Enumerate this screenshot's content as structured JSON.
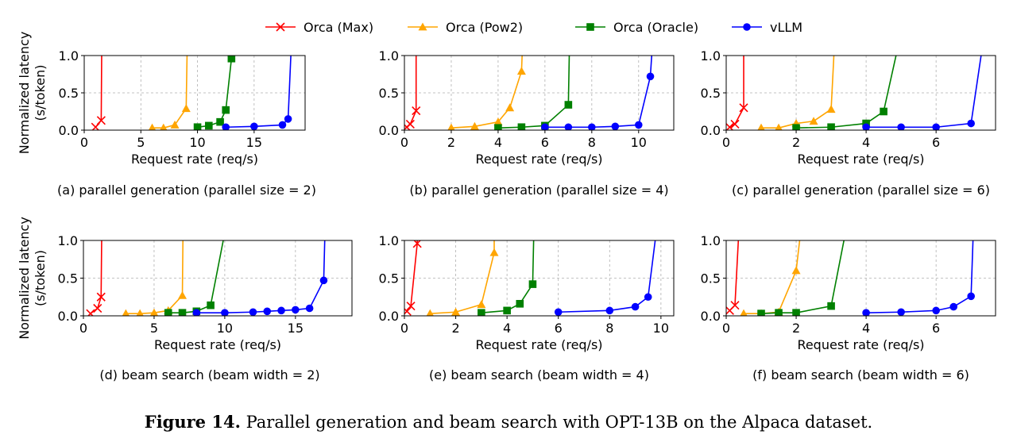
{
  "caption": {
    "label": "Figure 14.",
    "text": "Parallel generation and beam search with OPT-13B on the Alpaca dataset."
  },
  "legend": [
    {
      "name": "Orca (Max)",
      "color": "#ff0000",
      "marker": "x"
    },
    {
      "name": "Orca (Pow2)",
      "color": "#ffa500",
      "marker": "triangle"
    },
    {
      "name": "Orca (Oracle)",
      "color": "#008000",
      "marker": "square"
    },
    {
      "name": "vLLM",
      "color": "#0000ff",
      "marker": "circle"
    }
  ],
  "chart_data": [
    {
      "type": "line",
      "title": "(a) parallel generation (parallel size = 2)",
      "xlabel": "Request rate (req/s)",
      "ylabel": "Normalized latency (s/token)",
      "xlim": [
        0,
        19.5
      ],
      "ylim": [
        0,
        1.0
      ],
      "xticks": [
        0,
        5,
        10,
        15
      ],
      "yticks": [
        0.0,
        0.5,
        1.0
      ],
      "grid": true,
      "series": [
        {
          "name": "Orca (Max)",
          "x": [
            1.0,
            1.5,
            1.55
          ],
          "y": [
            0.04,
            0.13,
            1.2
          ]
        },
        {
          "name": "Orca (Pow2)",
          "x": [
            6,
            7,
            8,
            9,
            9.1
          ],
          "y": [
            0.03,
            0.03,
            0.07,
            0.29,
            1.2
          ]
        },
        {
          "name": "Orca (Oracle)",
          "x": [
            10,
            11,
            12,
            12.5,
            13
          ],
          "y": [
            0.04,
            0.06,
            0.11,
            0.27,
            0.96
          ]
        },
        {
          "name": "vLLM",
          "x": [
            12.5,
            15,
            17.5,
            18,
            18.3
          ],
          "y": [
            0.04,
            0.05,
            0.07,
            0.15,
            1.2
          ]
        }
      ]
    },
    {
      "type": "line",
      "title": "(b) parallel generation (parallel size = 4)",
      "xlabel": "Request rate (req/s)",
      "ylabel": "",
      "xlim": [
        0,
        11.5
      ],
      "ylim": [
        0,
        1.0
      ],
      "xticks": [
        0,
        2,
        4,
        6,
        8,
        10
      ],
      "yticks": [
        0.0,
        0.5,
        1.0
      ],
      "grid": true,
      "series": [
        {
          "name": "Orca (Max)",
          "x": [
            0.1,
            0.25,
            0.5,
            0.5
          ],
          "y": [
            0.04,
            0.08,
            0.26,
            1.2
          ]
        },
        {
          "name": "Orca (Pow2)",
          "x": [
            2,
            3,
            4,
            4.5,
            5,
            5.05
          ],
          "y": [
            0.03,
            0.05,
            0.11,
            0.3,
            0.79,
            1.2
          ]
        },
        {
          "name": "Orca (Oracle)",
          "x": [
            4,
            5,
            6,
            7,
            7.05
          ],
          "y": [
            0.03,
            0.04,
            0.06,
            0.34,
            1.2
          ]
        },
        {
          "name": "vLLM",
          "x": [
            6,
            7,
            8,
            9,
            10,
            10.5,
            10.6
          ],
          "y": [
            0.04,
            0.04,
            0.04,
            0.05,
            0.07,
            0.72,
            1.2
          ]
        }
      ]
    },
    {
      "type": "line",
      "title": "(c) parallel generation (parallel size = 6)",
      "xlabel": "Request rate (req/s)",
      "ylabel": "",
      "xlim": [
        0,
        7.7
      ],
      "ylim": [
        0,
        1.0
      ],
      "xticks": [
        0,
        2,
        4,
        6
      ],
      "yticks": [
        0.0,
        0.5,
        1.0
      ],
      "grid": true,
      "series": [
        {
          "name": "Orca (Max)",
          "x": [
            0.1,
            0.25,
            0.5,
            0.5
          ],
          "y": [
            0.04,
            0.08,
            0.3,
            1.2
          ]
        },
        {
          "name": "Orca (Pow2)",
          "x": [
            1,
            1.5,
            2,
            2.5,
            3,
            3.1
          ],
          "y": [
            0.03,
            0.03,
            0.09,
            0.12,
            0.28,
            1.2
          ]
        },
        {
          "name": "Orca (Oracle)",
          "x": [
            2,
            3,
            4,
            4.5,
            4.95
          ],
          "y": [
            0.03,
            0.04,
            0.09,
            0.25,
            1.2
          ]
        },
        {
          "name": "vLLM",
          "x": [
            4,
            5,
            6,
            7,
            7.35
          ],
          "y": [
            0.04,
            0.04,
            0.04,
            0.09,
            1.2
          ]
        }
      ]
    },
    {
      "type": "line",
      "title": "(d) beam search (beam width = 2)",
      "xlabel": "Request rate (req/s)",
      "ylabel": "Normalized latency (s/token)",
      "xlim": [
        0,
        19
      ],
      "ylim": [
        0,
        1.0
      ],
      "xticks": [
        0,
        5,
        10,
        15
      ],
      "yticks": [
        0.0,
        0.5,
        1.0
      ],
      "grid": true,
      "series": [
        {
          "name": "Orca (Max)",
          "x": [
            0.5,
            1.0,
            1.25,
            1.3
          ],
          "y": [
            0.03,
            0.1,
            0.25,
            1.2
          ]
        },
        {
          "name": "Orca (Pow2)",
          "x": [
            3,
            4,
            5,
            6,
            7,
            7.05
          ],
          "y": [
            0.03,
            0.03,
            0.04,
            0.07,
            0.27,
            1.2
          ]
        },
        {
          "name": "Orca (Oracle)",
          "x": [
            6,
            7,
            8,
            9,
            10.1
          ],
          "y": [
            0.04,
            0.04,
            0.06,
            0.14,
            1.2
          ]
        },
        {
          "name": "vLLM",
          "x": [
            8,
            10,
            12,
            13,
            14,
            15,
            16,
            17,
            17.1
          ],
          "y": [
            0.04,
            0.04,
            0.05,
            0.06,
            0.07,
            0.08,
            0.1,
            0.47,
            1.2
          ]
        }
      ]
    },
    {
      "type": "line",
      "title": "(e) beam search (beam width = 4)",
      "xlabel": "Request rate (req/s)",
      "ylabel": "",
      "xlim": [
        0,
        10.5
      ],
      "ylim": [
        0,
        1.0
      ],
      "xticks": [
        0,
        2,
        4,
        6,
        8,
        10
      ],
      "yticks": [
        0.0,
        0.5,
        1.0
      ],
      "grid": true,
      "series": [
        {
          "name": "Orca (Max)",
          "x": [
            0.1,
            0.25,
            0.5,
            0.52
          ],
          "y": [
            0.06,
            0.13,
            0.96,
            1.2
          ]
        },
        {
          "name": "Orca (Pow2)",
          "x": [
            1,
            2,
            3,
            3.5,
            3.5
          ],
          "y": [
            0.03,
            0.05,
            0.15,
            0.84,
            1.2
          ]
        },
        {
          "name": "Orca (Oracle)",
          "x": [
            3,
            4,
            4.5,
            5,
            5.05
          ],
          "y": [
            0.04,
            0.07,
            0.16,
            0.42,
            1.2
          ]
        },
        {
          "name": "vLLM",
          "x": [
            6,
            8,
            9,
            9.5,
            9.85
          ],
          "y": [
            0.05,
            0.07,
            0.12,
            0.25,
            1.2
          ]
        }
      ]
    },
    {
      "type": "line",
      "title": "(f) beam search (beam width = 6)",
      "xlabel": "Request rate (req/s)",
      "ylabel": "",
      "xlim": [
        0,
        7.7
      ],
      "ylim": [
        0,
        1.0
      ],
      "xticks": [
        0,
        2,
        4,
        6
      ],
      "yticks": [
        0.0,
        0.5,
        1.0
      ],
      "grid": true,
      "series": [
        {
          "name": "Orca (Max)",
          "x": [
            0.1,
            0.25,
            0.37
          ],
          "y": [
            0.07,
            0.14,
            1.2
          ]
        },
        {
          "name": "Orca (Pow2)",
          "x": [
            0.5,
            1,
            1.5,
            2,
            2.15
          ],
          "y": [
            0.03,
            0.03,
            0.05,
            0.6,
            1.2
          ]
        },
        {
          "name": "Orca (Oracle)",
          "x": [
            1,
            1.5,
            2,
            3,
            3.45
          ],
          "y": [
            0.03,
            0.04,
            0.04,
            0.13,
            1.2
          ]
        },
        {
          "name": "vLLM",
          "x": [
            4,
            5,
            6,
            6.5,
            7,
            7.07
          ],
          "y": [
            0.04,
            0.05,
            0.07,
            0.12,
            0.26,
            1.2
          ]
        }
      ]
    }
  ]
}
